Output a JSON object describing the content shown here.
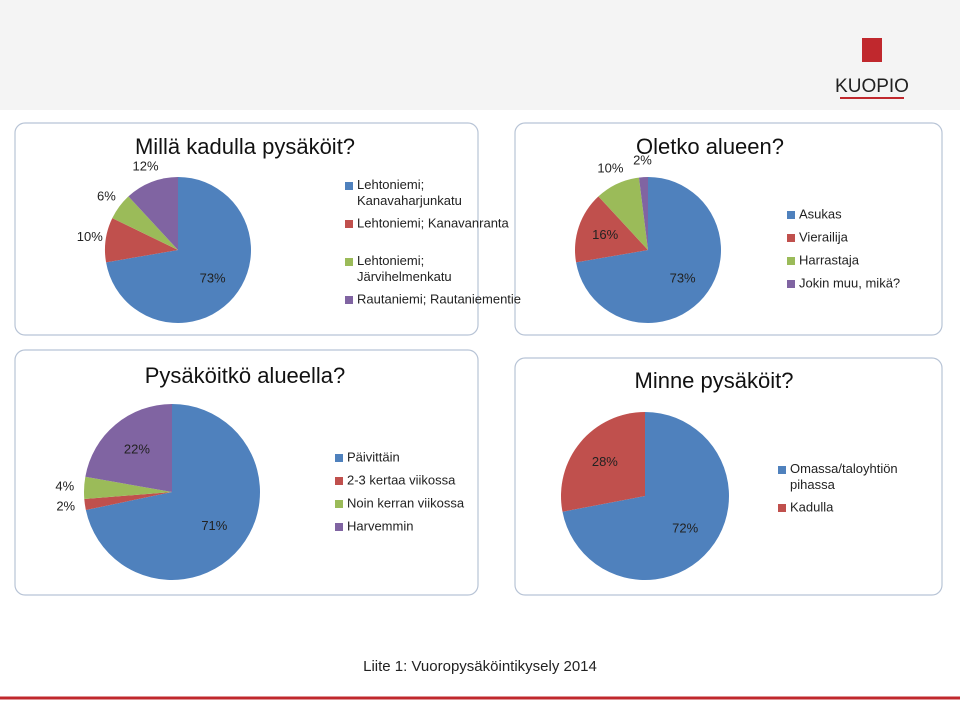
{
  "logo": "KUOPIO",
  "footer": "Liite 1: Vuoropysäköintikysely 2014",
  "chart_data": [
    {
      "type": "pie",
      "title": "Millä kadulla pysäköit?",
      "categories": [
        "Lehtoniemi; Kanavaharjunkatu",
        "Lehtoniemi; Kanavanranta",
        "Lehtoniemi; Järvihelmenkatu",
        "Rautaniemi; Rautaniementie"
      ],
      "values": [
        73,
        10,
        6,
        12
      ],
      "value_labels": [
        "73%",
        "10%",
        "6%",
        "12%"
      ],
      "colors": [
        "#4f81bd",
        "#c0504d",
        "#9bbb59",
        "#8064a2"
      ]
    },
    {
      "type": "pie",
      "title": "Oletko alueen?",
      "categories": [
        "Asukas",
        "Vierailija",
        "Harrastaja",
        "Jokin muu, mikä?"
      ],
      "values": [
        73,
        16,
        10,
        2
      ],
      "value_labels": [
        "73%",
        "16%",
        "10%",
        "2%"
      ],
      "colors": [
        "#4f81bd",
        "#c0504d",
        "#9bbb59",
        "#8064a2"
      ]
    },
    {
      "type": "pie",
      "title": "Pysäköitkö alueella?",
      "categories": [
        "Päivittäin",
        "2-3 kertaa viikossa",
        "Noin kerran viikossa",
        "Harvemmin"
      ],
      "values": [
        71,
        2,
        4,
        22
      ],
      "value_labels": [
        "71%",
        "2%",
        "4%",
        "22%"
      ],
      "colors": [
        "#4f81bd",
        "#c0504d",
        "#9bbb59",
        "#8064a2"
      ]
    },
    {
      "type": "pie",
      "title": "Minne pysäköit?",
      "categories": [
        "Omassa/taloyhtiön pihassa",
        "Kadulla"
      ],
      "values": [
        72,
        28
      ],
      "value_labels": [
        "72%",
        "28%"
      ],
      "colors": [
        "#4f81bd",
        "#c0504d"
      ]
    }
  ]
}
